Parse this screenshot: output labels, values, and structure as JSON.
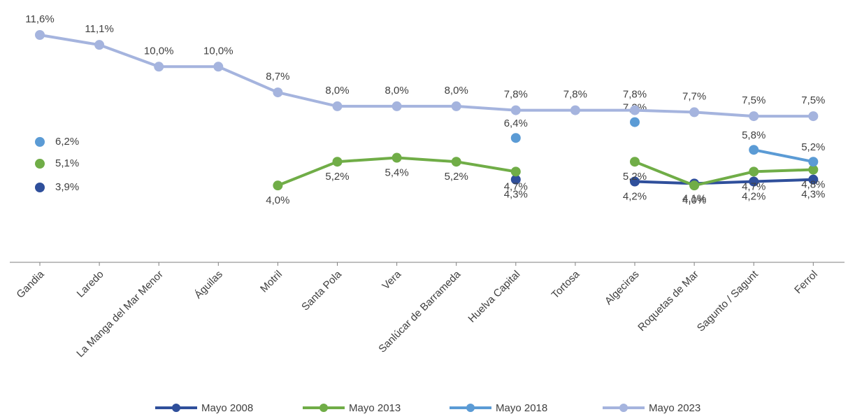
{
  "chart_data": {
    "type": "line",
    "categories": [
      "Gandia",
      "Laredo",
      "La Manga del Mar Menor",
      "Águilas",
      "Motril",
      "Santa Pola",
      "Vera",
      "Sanlúcar de Barrameda",
      "Huelva Capital",
      "Tortosa",
      "Algeciras",
      "Roquetas de Mar",
      "Sagunto / Sagunt",
      "Ferrol"
    ],
    "series": [
      {
        "name": "Mayo 2008",
        "color": "#2f4f9b",
        "values": [
          3.9,
          null,
          null,
          null,
          null,
          null,
          null,
          null,
          4.3,
          null,
          4.2,
          4.1,
          4.2,
          4.3
        ],
        "value_labels": [
          "3,9%",
          null,
          null,
          null,
          null,
          null,
          null,
          null,
          "4,3%",
          null,
          "4,2%",
          "4,1%",
          "4,2%",
          "4,3%"
        ]
      },
      {
        "name": "Mayo 2013",
        "color": "#70ad47",
        "values": [
          5.1,
          null,
          null,
          null,
          4.0,
          5.2,
          5.4,
          5.2,
          4.7,
          null,
          5.2,
          4.0,
          4.7,
          4.8
        ],
        "value_labels": [
          "5,1%",
          null,
          null,
          null,
          "4,0%",
          "5,2%",
          "5,4%",
          "5,2%",
          "4,7%",
          null,
          "5,2%",
          "4,0%",
          "4,7%",
          "4,8%"
        ]
      },
      {
        "name": "Mayo 2018",
        "color": "#5b9bd5",
        "values": [
          6.2,
          null,
          null,
          null,
          null,
          null,
          null,
          null,
          6.4,
          null,
          7.2,
          null,
          5.8,
          5.2
        ],
        "value_labels": [
          "6,2%",
          null,
          null,
          null,
          null,
          null,
          null,
          null,
          "6,4%",
          null,
          "7,2%",
          null,
          "5,8%",
          "5,2%"
        ]
      },
      {
        "name": "Mayo 2023",
        "color": "#a5b4de",
        "values": [
          11.6,
          11.1,
          10.0,
          10.0,
          8.7,
          8.0,
          8.0,
          8.0,
          7.8,
          7.8,
          7.8,
          7.7,
          7.5,
          7.5
        ],
        "value_labels": [
          "11,6%",
          "11,1%",
          "10,0%",
          "10,0%",
          "8,7%",
          "8,0%",
          "8,0%",
          "8,0%",
          "7,8%",
          "7,8%",
          "7,8%",
          "7,7%",
          "7,5%",
          "7,5%"
        ]
      }
    ]
  }
}
